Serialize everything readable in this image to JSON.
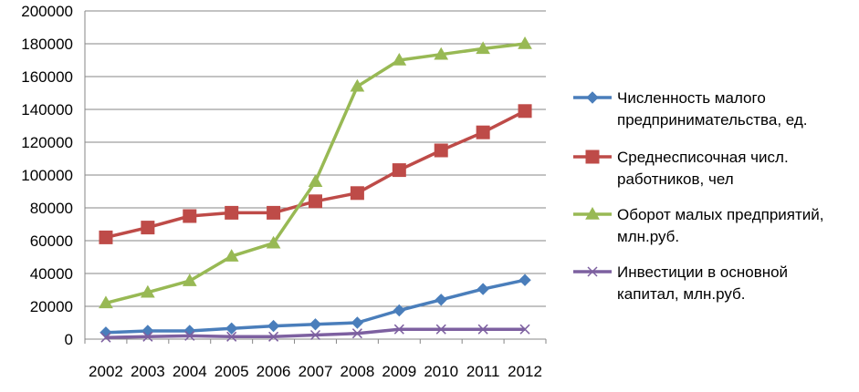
{
  "chart_data": {
    "type": "line",
    "title": "",
    "xlabel": "",
    "ylabel": "",
    "categories": [
      "2002",
      "2003",
      "2004",
      "2005",
      "2006",
      "2007",
      "2008",
      "2009",
      "2010",
      "2011",
      "2012"
    ],
    "ylim": [
      0,
      200000
    ],
    "yticks": [
      0,
      20000,
      40000,
      60000,
      80000,
      100000,
      120000,
      140000,
      160000,
      180000,
      200000
    ],
    "ytick_labels": [
      "0",
      "20000",
      "40000",
      "60000",
      "80000",
      "100000",
      "120000",
      "140000",
      "160000",
      "180000",
      "200000"
    ],
    "grid": true,
    "legend_position": "right",
    "series": [
      {
        "name_lines": [
          "Численность малого",
          "предпринимательства, ед."
        ],
        "color": "#4A7EBB",
        "marker": "diamond",
        "values": [
          4000,
          5000,
          5000,
          6500,
          8000,
          9000,
          10000,
          17500,
          24000,
          30500,
          36000
        ]
      },
      {
        "name_lines": [
          "Среднесписочная числ.",
          "работников, чел"
        ],
        "color": "#BE4B48",
        "marker": "square",
        "values": [
          62000,
          68000,
          75000,
          77000,
          77000,
          84000,
          89000,
          103000,
          115000,
          126000,
          139000
        ]
      },
      {
        "name_lines": [
          "Оборот малых предприятий,",
          "млн.руб."
        ],
        "color": "#98B954",
        "marker": "triangle",
        "values": [
          22000,
          28500,
          35500,
          50500,
          58500,
          96000,
          154000,
          170000,
          173500,
          177000,
          180000
        ]
      },
      {
        "name_lines": [
          "Инвестиции в основной",
          "капитал, млн.руб."
        ],
        "color": "#7D60A0",
        "marker": "x",
        "values": [
          1000,
          1500,
          2000,
          1500,
          1500,
          2500,
          3500,
          6000,
          6000,
          6000,
          6000
        ]
      }
    ]
  }
}
